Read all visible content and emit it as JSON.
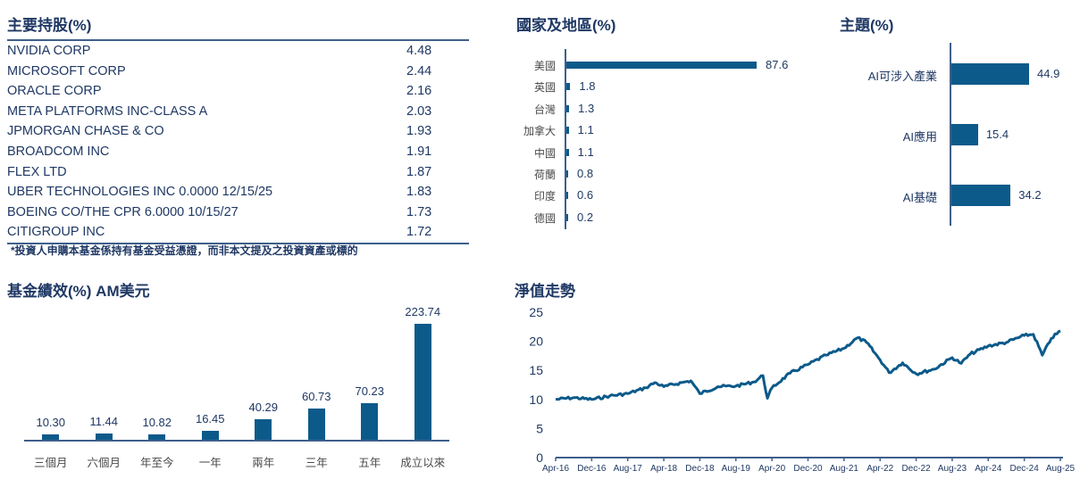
{
  "holdings": {
    "title": "主要持股(%)",
    "rows": [
      {
        "name": "NVIDIA CORP",
        "value": "4.48"
      },
      {
        "name": "MICROSOFT CORP",
        "value": "2.44"
      },
      {
        "name": "ORACLE CORP",
        "value": "2.16"
      },
      {
        "name": "META PLATFORMS INC-CLASS A",
        "value": "2.03"
      },
      {
        "name": "JPMORGAN CHASE & CO",
        "value": "1.93"
      },
      {
        "name": "BROADCOM INC",
        "value": "1.91"
      },
      {
        "name": "FLEX LTD",
        "value": "1.87"
      },
      {
        "name": "UBER TECHNOLOGIES INC 0.0000 12/15/25",
        "value": "1.83"
      },
      {
        "name": "BOEING CO/THE CPR 6.0000 10/15/27",
        "value": "1.73"
      },
      {
        "name": "CITIGROUP INC",
        "value": "1.72"
      }
    ],
    "note": "*投資人申購本基金係持有基金受益憑證，而非本文提及之投資資產或標的"
  },
  "colors": {
    "bar": "#0c5a8a",
    "title": "#1f3864",
    "axis": "#3e5f8a",
    "line": "#0c5a8a"
  },
  "chart_data": [
    {
      "type": "bar",
      "orientation": "horizontal",
      "title": "國家及地區(%)",
      "categories": [
        "美國",
        "英國",
        "台灣",
        "加拿大",
        "中國",
        "荷蘭",
        "印度",
        "德國"
      ],
      "values": [
        87.6,
        1.8,
        1.3,
        1.1,
        1.1,
        0.8,
        0.6,
        0.2
      ],
      "labels": [
        "87.6",
        "1.8",
        "1.3",
        "1.1",
        "1.1",
        "0.8",
        "0.6",
        "0.2"
      ],
      "grid": false
    },
    {
      "type": "bar",
      "orientation": "horizontal",
      "title": "主題(%)",
      "categories": [
        "AI可涉入產業",
        "AI應用",
        "AI基礎"
      ],
      "values": [
        44.9,
        15.4,
        34.2
      ],
      "labels": [
        "44.9",
        "15.4",
        "34.2"
      ],
      "grid": false
    },
    {
      "type": "bar",
      "title": "基金績效(%) AM美元",
      "categories": [
        "三個月",
        "六個月",
        "年至今",
        "一年",
        "兩年",
        "三年",
        "五年",
        "成立以來"
      ],
      "values": [
        10.3,
        11.44,
        10.82,
        16.45,
        40.29,
        60.73,
        70.23,
        223.74
      ],
      "labels": [
        "10.30",
        "11.44",
        "10.82",
        "16.45",
        "40.29",
        "60.73",
        "70.23",
        "223.74"
      ],
      "grid": false
    },
    {
      "type": "line",
      "title": "淨值走勢",
      "xlabel": "",
      "ylabel": "",
      "ylim": [
        0,
        25
      ],
      "yticks": [
        "0",
        "5",
        "10",
        "15",
        "20",
        "25"
      ],
      "xticks": [
        "Apr-16",
        "Dec-16",
        "Aug-17",
        "Apr-18",
        "Dec-18",
        "Aug-19",
        "Apr-20",
        "Dec-20",
        "Aug-21",
        "Apr-22",
        "Dec-22",
        "Aug-23",
        "Apr-24",
        "Dec-24",
        "Aug-25"
      ],
      "x": [
        "Apr-16",
        "Aug-16",
        "Dec-16",
        "Apr-17",
        "Aug-17",
        "Dec-17",
        "Feb-18",
        "Apr-18",
        "Aug-18",
        "Oct-18",
        "Dec-18",
        "Apr-19",
        "Aug-19",
        "Dec-19",
        "Feb-20",
        "Mar-20",
        "Apr-20",
        "Aug-20",
        "Dec-20",
        "Apr-21",
        "Aug-21",
        "Nov-21",
        "Jan-22",
        "Apr-22",
        "Jun-22",
        "Sep-22",
        "Dec-22",
        "Apr-23",
        "Aug-23",
        "Oct-23",
        "Dec-23",
        "Apr-24",
        "Aug-24",
        "Dec-24",
        "Feb-25",
        "Apr-25",
        "Jun-25",
        "Aug-25"
      ],
      "values": [
        10.0,
        10.3,
        10.0,
        10.6,
        11.0,
        12.0,
        12.9,
        12.2,
        12.9,
        13.2,
        11.0,
        12.2,
        12.3,
        13.0,
        14.1,
        10.2,
        12.0,
        14.5,
        16.0,
        17.6,
        18.8,
        20.6,
        19.8,
        16.8,
        14.6,
        16.3,
        14.4,
        15.2,
        17.2,
        16.2,
        17.8,
        19.2,
        19.8,
        21.0,
        21.2,
        17.6,
        20.5,
        21.8
      ]
    }
  ]
}
